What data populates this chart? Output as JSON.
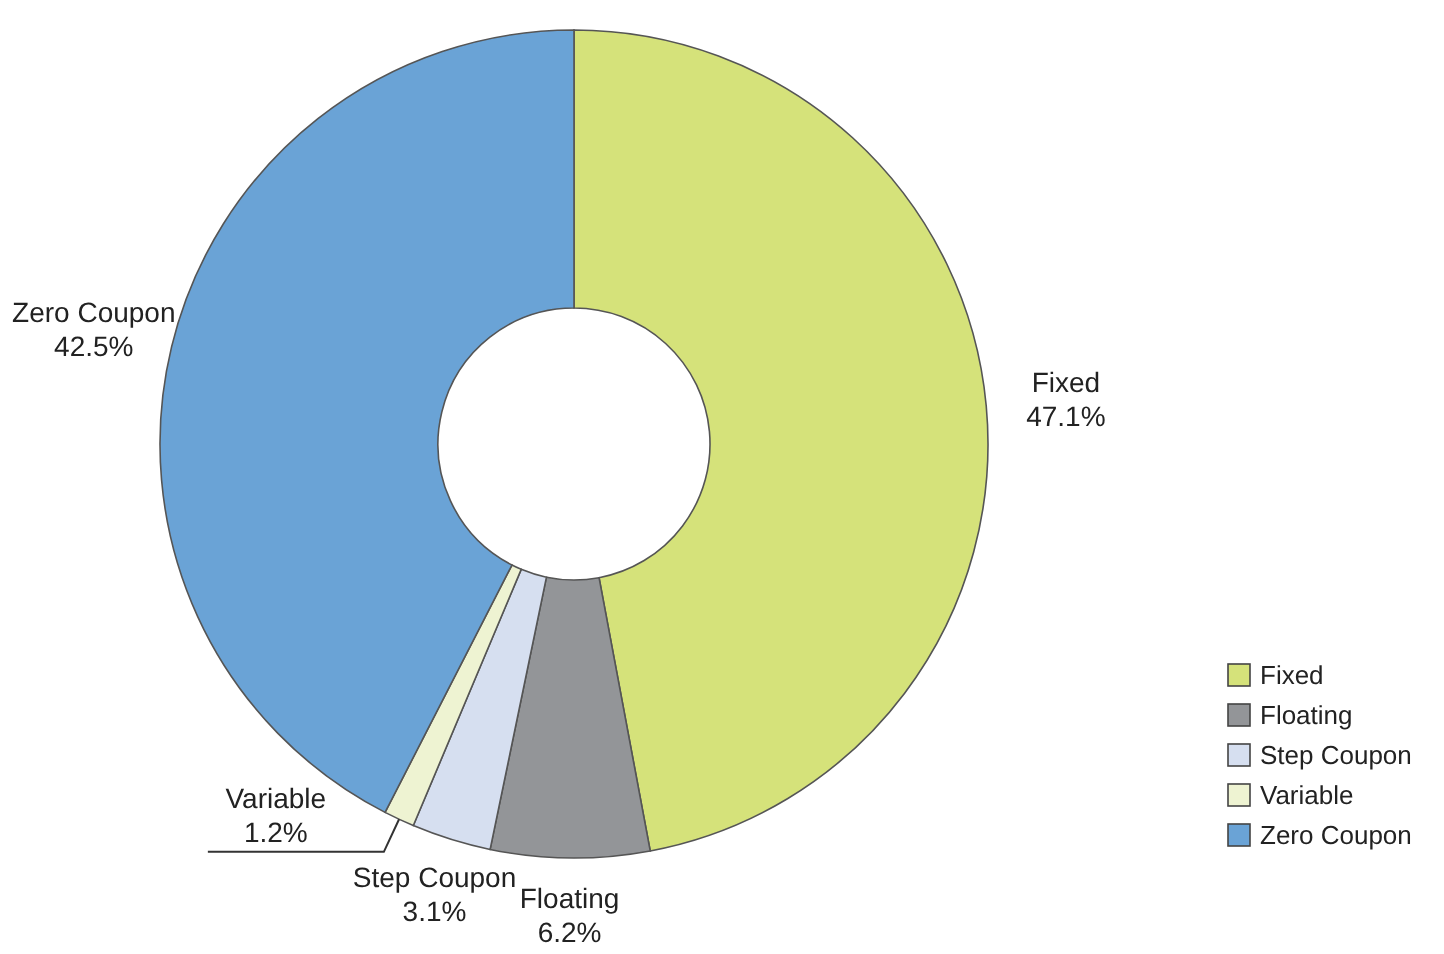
{
  "chart_data": {
    "type": "donut",
    "categories": [
      "Fixed",
      "Floating",
      "Step Coupon",
      "Variable",
      "Zero Coupon"
    ],
    "values": [
      47.1,
      6.2,
      3.1,
      1.2,
      42.5
    ],
    "colors": [
      "#d5e27a",
      "#939598",
      "#d6dff0",
      "#eef3d2",
      "#6aa3d6"
    ],
    "value_labels": [
      "47.1%",
      "6.2%",
      "3.1%",
      "1.2%",
      "42.5%"
    ],
    "legend": "bottom right"
  }
}
